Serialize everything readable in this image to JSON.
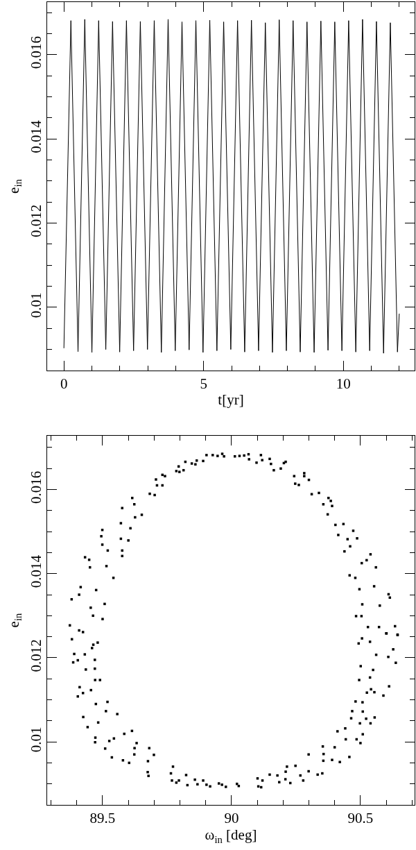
{
  "chart_data": [
    {
      "type": "line",
      "xlabel": "t[yr]",
      "ylabel": "e$_{in}$",
      "line_style": "solid",
      "xlim": [
        -0.6,
        12.55
      ],
      "ylim": [
        0.0085,
        0.01725
      ],
      "xticks": [
        0,
        {
          "value": 1,
          "label": null
        },
        {
          "value": 2,
          "label": null
        },
        {
          "value": 3,
          "label": null
        },
        {
          "value": 4,
          "label": null
        },
        5,
        {
          "value": 6,
          "label": null
        },
        {
          "value": 7,
          "label": null
        },
        {
          "value": 8,
          "label": null
        },
        {
          "value": 9,
          "label": null
        },
        10,
        {
          "value": 11,
          "label": null
        },
        {
          "value": 12,
          "label": null
        }
      ],
      "yticks": [
        {
          "value": 0.009,
          "label": null
        },
        {
          "value": 0.0095,
          "label": null
        },
        0.01,
        {
          "value": 0.0105,
          "label": null
        },
        {
          "value": 0.011,
          "label": null
        },
        {
          "value": 0.0115,
          "label": null
        },
        0.012,
        {
          "value": 0.0125,
          "label": null
        },
        {
          "value": 0.013,
          "label": null
        },
        {
          "value": 0.0135,
          "label": null
        },
        0.014,
        {
          "value": 0.0145,
          "label": null
        },
        {
          "value": 0.015,
          "label": null
        },
        {
          "value": 0.0155,
          "label": null
        },
        0.016,
        {
          "value": 0.0165,
          "label": null
        },
        {
          "value": 0.017,
          "label": null
        }
      ],
      "series": [
        {
          "color": "#000000",
          "x": [
            0,
            0.25,
            0.505,
            0.747,
            1.002,
            1.244,
            1.499,
            1.741,
            1.996,
            2.238,
            2.493,
            2.735,
            2.99,
            3.232,
            3.487,
            3.729,
            3.984,
            4.226,
            4.481,
            4.723,
            4.978,
            5.22,
            5.475,
            5.717,
            5.972,
            6.214,
            6.469,
            6.711,
            6.966,
            7.208,
            7.463,
            7.705,
            7.96,
            8.202,
            8.457,
            8.699,
            8.954,
            9.196,
            9.451,
            9.693,
            9.948,
            10.19,
            10.445,
            10.687,
            10.942,
            11.184,
            11.439,
            11.681,
            11.936,
            12.0
          ],
          "values": [
            0.00903,
            0.01681,
            0.00895,
            0.01684,
            0.00893,
            0.01681,
            0.009,
            0.01679,
            0.00894,
            0.01681,
            0.00897,
            0.01679,
            0.009,
            0.01681,
            0.00893,
            0.01684,
            0.00897,
            0.01678,
            0.00899,
            0.01681,
            0.00893,
            0.01682,
            0.00897,
            0.01678,
            0.009,
            0.01681,
            0.00894,
            0.01682,
            0.00897,
            0.01676,
            0.00893,
            0.01683,
            0.00897,
            0.01681,
            0.00894,
            0.01678,
            0.00893,
            0.0168,
            0.00898,
            0.01678,
            0.00897,
            0.01681,
            0.00894,
            0.01684,
            0.00897,
            0.01679,
            0.00891,
            0.01676,
            0.00894,
            0.00985
          ]
        }
      ]
    },
    {
      "type": "scatter",
      "xlabel": "ω$_{in}$ [deg]",
      "ylabel": "e$_{in}$",
      "marker": "square",
      "xlim": [
        89.285,
        90.71
      ],
      "ylim": [
        0.0085,
        0.01728
      ],
      "xticks": [
        {
          "value": 89.3,
          "label": null
        },
        {
          "value": 89.4,
          "label": null
        },
        89.5,
        {
          "value": 89.6,
          "label": null
        },
        {
          "value": 89.7,
          "label": null
        },
        {
          "value": 89.8,
          "label": null
        },
        {
          "value": 89.9,
          "label": null
        },
        90,
        {
          "value": 90.1,
          "label": null
        },
        {
          "value": 90.2,
          "label": null
        },
        {
          "value": 90.3,
          "label": null
        },
        {
          "value": 90.4,
          "label": null
        },
        90.5,
        {
          "value": 90.6,
          "label": null
        },
        {
          "value": 90.7,
          "label": null
        }
      ],
      "yticks": [
        {
          "value": 0.009,
          "label": null
        },
        {
          "value": 0.0095,
          "label": null
        },
        0.01,
        {
          "value": 0.0105,
          "label": null
        },
        {
          "value": 0.011,
          "label": null
        },
        {
          "value": 0.0115,
          "label": null
        },
        0.012,
        {
          "value": 0.0125,
          "label": null
        },
        {
          "value": 0.013,
          "label": null
        },
        {
          "value": 0.0135,
          "label": null
        },
        0.014,
        {
          "value": 0.0145,
          "label": null
        },
        {
          "value": 0.015,
          "label": null
        },
        {
          "value": 0.0155,
          "label": null
        },
        0.016,
        {
          "value": 0.0165,
          "label": null
        },
        {
          "value": 0.017,
          "label": null
        }
      ],
      "series": [
        {
          "color": "#000000",
          "x": [
            89.38,
            89.409,
            89.415,
            89.432,
            89.448,
            89.451,
            89.454,
            89.463,
            89.475,
            89.495,
            89.499,
            89.499,
            89.5,
            89.508,
            89.515,
            89.52,
            89.542,
            89.571,
            89.571,
            89.576,
            89.576,
            89.576,
            89.6,
            89.608,
            89.615,
            89.623,
            89.626,
            89.652,
            89.683,
            89.702,
            89.707,
            89.711,
            89.732,
            89.732,
            89.742,
            89.786,
            89.795,
            89.798,
            89.814,
            89.821,
            89.846,
            89.86,
            89.865,
            89.89,
            89.903,
            89.927,
            89.946,
            89.964,
            89.971,
            90.013,
            90.031,
            90.049,
            90.066,
            90.068,
            90.097,
            90.114,
            90.119,
            90.148,
            90.153,
            90.164,
            90.191,
            90.203,
            90.21,
            90.243,
            90.247,
            90.261,
            90.282,
            90.282,
            90.3,
            90.311,
            90.339,
            90.356,
            90.376,
            90.385,
            90.39,
            90.373,
            90.403,
            90.414,
            90.434,
            90.438,
            90.45,
            90.46,
            90.472,
            90.487,
            90.458,
            90.48,
            90.496,
            90.505,
            90.524,
            90.539,
            90.507,
            90.483,
            90.504,
            90.529,
            90.553,
            90.56,
            90.575,
            90.572,
            90.601,
            90.609,
            90.614,
            90.634,
            90.644,
            89.373,
            89.409,
            89.424,
            89.381,
            89.459,
            89.464,
            89.481,
            89.39,
            89.404,
            89.431,
            89.386,
            89.47,
            89.47,
            89.435,
            89.471,
            89.49,
            89.411,
            89.424,
            89.404,
            89.455,
            89.474,
            89.519,
            89.513,
            89.557,
            89.425,
            89.483,
            89.442,
            89.472,
            89.471,
            89.526,
            89.544,
            89.584,
            89.614,
            89.51,
            89.536,
            89.579,
            89.603,
            89.623,
            89.624,
            89.632,
            89.675,
            89.678,
            89.676,
            89.681,
            89.699,
            89.773,
            89.765,
            89.769,
            89.786,
            89.796,
            89.824,
            89.829,
            89.858,
            89.868,
            89.89,
            89.903,
            89.917,
            89.951,
            89.963,
            89.978,
            90.021,
            90.028,
            90.101,
            90.104,
            90.12,
            90.115,
            90.148,
            90.178,
            90.185,
            90.21,
            90.215,
            90.209,
            90.228,
            90.248,
            90.267,
            90.278,
            90.299,
            90.299,
            90.334,
            90.352,
            90.354,
            90.357,
            90.356,
            90.39,
            90.4,
            90.42,
            90.411,
            90.441,
            90.443,
            90.457,
            90.464,
            90.468,
            90.481,
            90.485,
            90.498,
            90.5,
            90.509,
            90.508,
            90.509,
            90.522,
            90.539,
            90.555,
            90.525,
            90.541,
            90.554,
            90.589,
            90.611,
            90.495,
            90.501,
            90.537,
            90.549,
            90.561,
            90.608,
            90.627,
            90.637,
            90.493,
            90.506,
            90.537,
            90.6,
            90.644
          ],
          "values": [
            0.01339,
            0.0135,
            0.01368,
            0.01439,
            0.01433,
            0.01415,
            0.01319,
            0.013,
            0.01361,
            0.01489,
            0.01504,
            0.01469,
            0.01292,
            0.01328,
            0.01418,
            0.01455,
            0.0139,
            0.0152,
            0.01483,
            0.01556,
            0.01455,
            0.01442,
            0.01479,
            0.01508,
            0.0158,
            0.01565,
            0.01534,
            0.0154,
            0.0159,
            0.01587,
            0.01624,
            0.0161,
            0.01635,
            0.0161,
            0.01632,
            0.01644,
            0.01655,
            0.01642,
            0.01646,
            0.01666,
            0.01662,
            0.0166,
            0.01669,
            0.01668,
            0.01682,
            0.01682,
            0.0168,
            0.01685,
            0.01679,
            0.01679,
            0.0168,
            0.01681,
            0.01684,
            0.01672,
            0.01664,
            0.01682,
            0.0167,
            0.01673,
            0.01661,
            0.01646,
            0.0165,
            0.01663,
            0.01666,
            0.01632,
            0.01614,
            0.01611,
            0.01639,
            0.01632,
            0.01623,
            0.01589,
            0.01592,
            0.01565,
            0.0158,
            0.01573,
            0.01561,
            0.01541,
            0.01516,
            0.01492,
            0.01518,
            0.01453,
            0.01482,
            0.01465,
            0.01502,
            0.01484,
            0.01396,
            0.0139,
            0.01363,
            0.01425,
            0.01432,
            0.01446,
            0.01327,
            0.01299,
            0.01299,
            0.01273,
            0.0137,
            0.01415,
            0.01324,
            0.01273,
            0.01258,
            0.01351,
            0.01343,
            0.01275,
            0.01254,
            0.01277,
            0.01265,
            0.01261,
            0.01244,
            0.01223,
            0.01231,
            0.01236,
            0.01209,
            0.01194,
            0.01208,
            0.01189,
            0.01195,
            0.01174,
            0.01172,
            0.01147,
            0.01147,
            0.0113,
            0.01116,
            0.01108,
            0.01123,
            0.0109,
            0.01095,
            0.01073,
            0.01066,
            0.01059,
            0.01046,
            0.01035,
            0.0101,
            0.00999,
            0.01002,
            0.01008,
            0.01019,
            0.01026,
            0.00984,
            0.00963,
            0.00956,
            0.0095,
            0.0097,
            0.00985,
            0.00997,
            0.00928,
            0.00919,
            0.00954,
            0.00985,
            0.00969,
            0.00941,
            0.00925,
            0.00908,
            0.00903,
            0.00908,
            0.00921,
            0.00897,
            0.0091,
            0.00899,
            0.00908,
            0.00898,
            0.00894,
            0.00901,
            0.00898,
            0.00893,
            0.009,
            0.00895,
            0.00913,
            0.00894,
            0.00908,
            0.00892,
            0.00922,
            0.0092,
            0.00904,
            0.00929,
            0.00941,
            0.00911,
            0.00902,
            0.00943,
            0.0092,
            0.00908,
            0.0097,
            0.0093,
            0.00922,
            0.00925,
            0.00989,
            0.00971,
            0.00955,
            0.00957,
            0.00987,
            0.00952,
            0.01025,
            0.01032,
            0.01006,
            0.00964,
            0.01056,
            0.01073,
            0.01096,
            0.01006,
            0.01044,
            0.00997,
            0.01018,
            0.01094,
            0.01072,
            0.01055,
            0.01044,
            0.01058,
            0.01117,
            0.01125,
            0.01118,
            0.0111,
            0.01132,
            0.01147,
            0.0118,
            0.01153,
            0.01171,
            0.01207,
            0.01202,
            0.0122,
            0.01188,
            0.01234,
            0.01246,
            0.01238,
            0.01258,
            0.01255
          ]
        }
      ]
    }
  ]
}
